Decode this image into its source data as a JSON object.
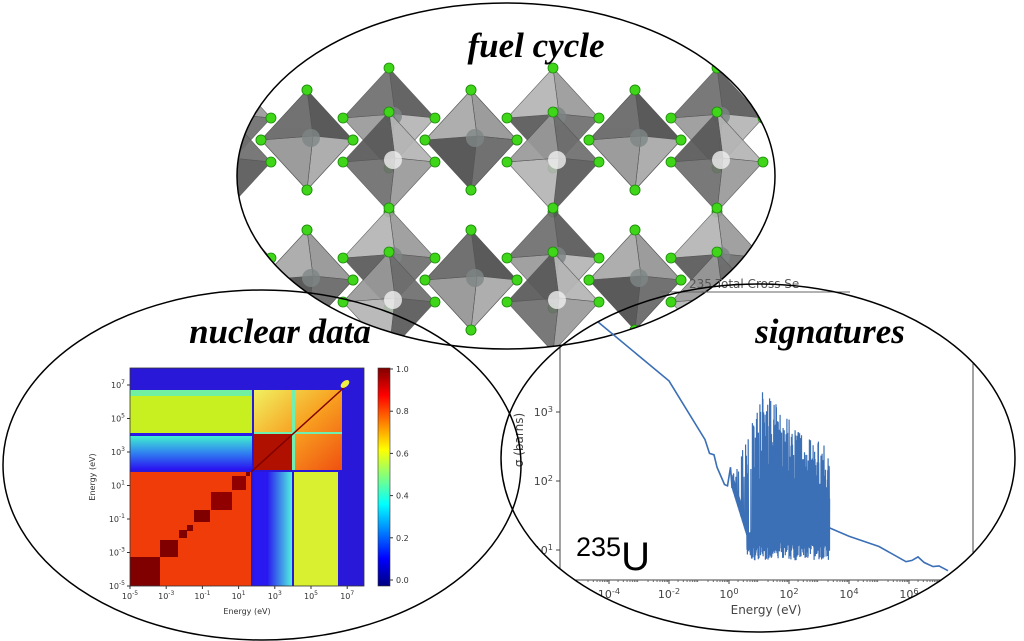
{
  "labels": {
    "fuel_cycle": "fuel cycle",
    "nuclear_data": "nuclear data",
    "signatures": "signatures"
  },
  "colors": {
    "curve": "#3b6fb6",
    "crystal_face": "#8a8a8a",
    "atom_green": "#3fd61a"
  },
  "chart_data": [
    {
      "type": "heatmap",
      "title": "",
      "xlabel": "Energy (eV)",
      "ylabel": "Energy (eV)",
      "x_tick_base": "10",
      "x_tick_exponents": [
        "-5",
        "-3",
        "-1",
        "1",
        "3",
        "5",
        "7"
      ],
      "y_tick_exponents": [
        "-5",
        "-3",
        "-1",
        "1",
        "3",
        "5",
        "7"
      ],
      "scale": "log",
      "colorbar": {
        "range": [
          0,
          1
        ],
        "ticks": [
          "0.0",
          "0.2",
          "0.4",
          "0.6",
          "0.8",
          "1.0"
        ],
        "colormap": "jet"
      }
    },
    {
      "type": "line",
      "title": "_235 Total Cross Se",
      "xlabel": "Energy (eV)",
      "ylabel": "σ (barns)",
      "x_tick_base": "10",
      "x_tick_exponents": [
        "-4",
        "-2",
        "0",
        "2",
        "4",
        "6"
      ],
      "y_tick_exponents": [
        "1",
        "2",
        "3"
      ],
      "xscale": "log",
      "yscale": "log",
      "annotation": {
        "mass": "235",
        "symbol": "U"
      },
      "series": [
        {
          "name": "U-235 total cross section",
          "log10_points_before_resonances": [
            [
              -4.63,
              4.4
            ],
            [
              -2,
              3.45
            ],
            [
              -0.8,
              2.6
            ],
            [
              -0.65,
              2.4
            ],
            [
              -0.5,
              2.38
            ],
            [
              -0.4,
              2.2
            ],
            [
              -0.15,
              1.95
            ],
            [
              -0.05,
              1.93
            ],
            [
              0.05,
              2.2
            ],
            [
              0.1,
              1.9
            ]
          ],
          "resolved_resonance_region_log10E": [
            0.1,
            3.35
          ],
          "resonance_peak_log10_sigma_max": 3.3,
          "resonance_min_log10_sigma": 0.85,
          "log10_points_after_resonances": [
            [
              3.35,
              1.32
            ],
            [
              4,
              1.2
            ],
            [
              5,
              1.05
            ],
            [
              5.9,
              0.83
            ],
            [
              6.1,
              0.85
            ],
            [
              6.3,
              0.9
            ],
            [
              6.5,
              0.82
            ],
            [
              6.8,
              0.76
            ],
            [
              7.0,
              0.77
            ],
            [
              7.3,
              0.7
            ]
          ]
        }
      ]
    }
  ]
}
